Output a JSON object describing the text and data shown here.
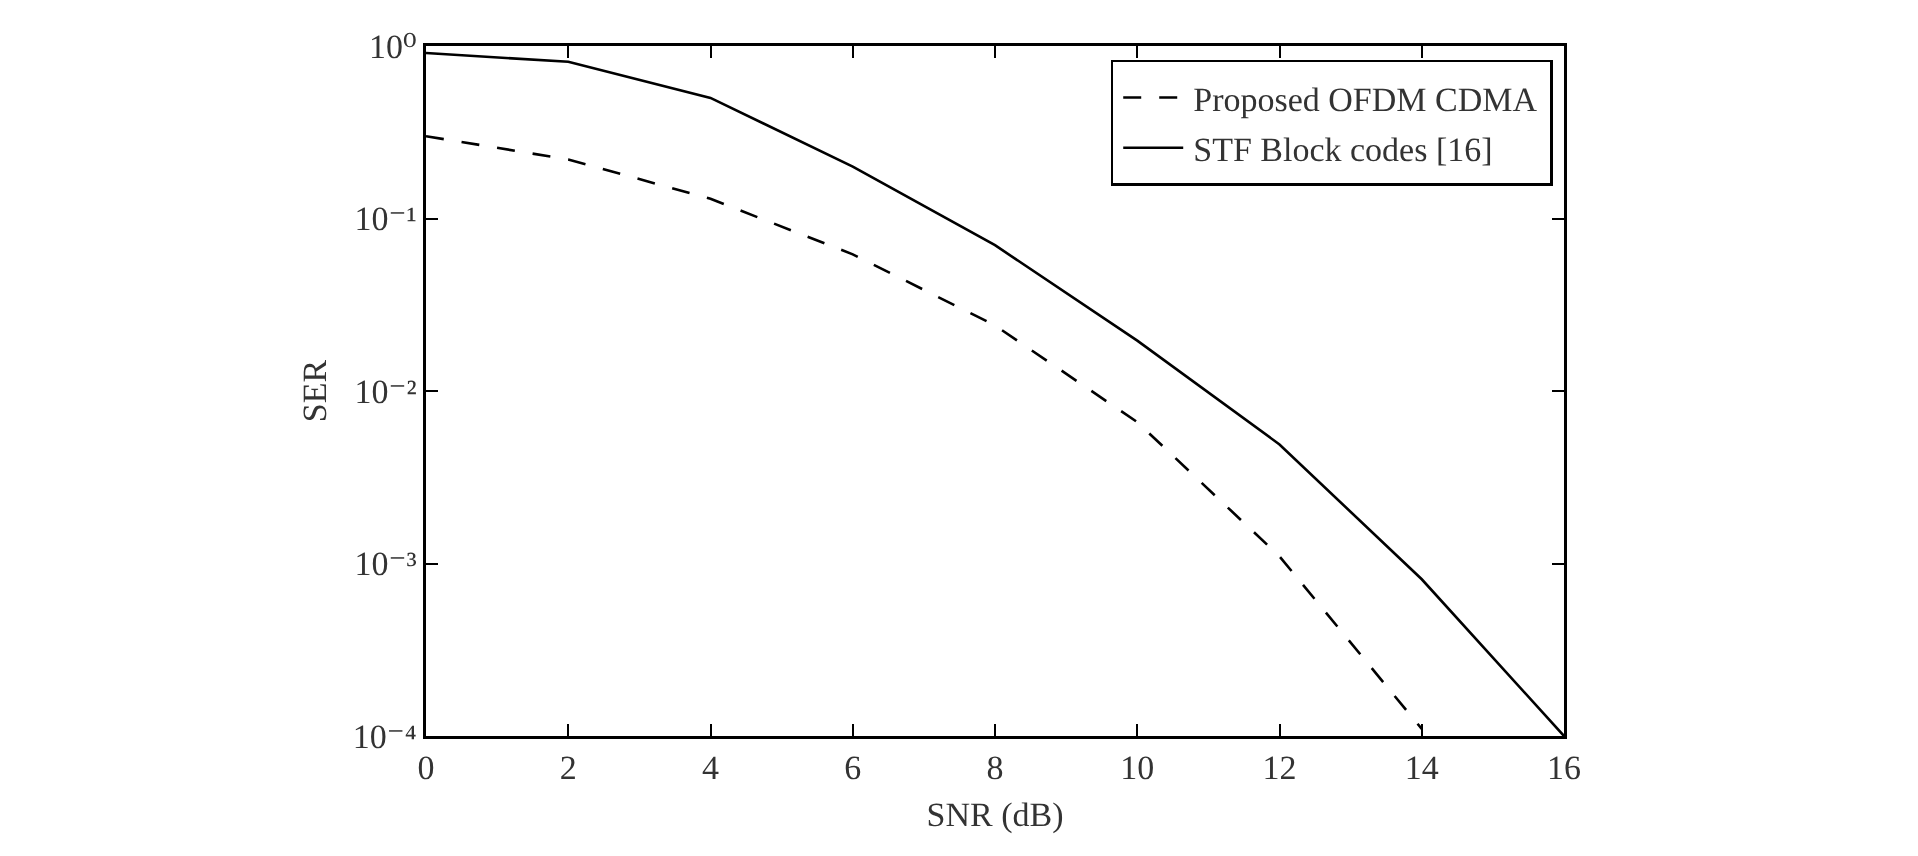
{
  "chart_data": {
    "type": "line",
    "xlabel": "SNR (dB)",
    "ylabel": "SER",
    "log": "y",
    "grid": false,
    "legend": "top right",
    "marker": "none",
    "x": [
      0,
      2,
      4,
      6,
      8,
      10,
      12,
      14,
      16
    ],
    "xlim": [
      0,
      16
    ],
    "xticks": [
      0,
      2,
      4,
      6,
      8,
      10,
      12,
      14,
      16
    ],
    "ylim": [
      0.0001,
      1
    ],
    "yticks": [
      {
        "value": 0.0001,
        "label": "10⁻⁴"
      },
      {
        "value": 0.001,
        "label": "10⁻³"
      },
      {
        "value": 0.01,
        "label": "10⁻²"
      },
      {
        "value": 0.1,
        "label": "10⁻¹"
      },
      {
        "value": 1,
        "label": "10⁰"
      }
    ],
    "series": [
      {
        "name": "Proposed OFDM CDMA",
        "color": "#000000",
        "line_style": "dashed",
        "values": [
          0.3,
          0.22,
          0.13,
          0.062,
          0.024,
          0.0066,
          0.0011,
          0.00011,
          null
        ]
      },
      {
        "name": "STF Block codes [16]",
        "color": "#000000",
        "line_style": "solid",
        "values": [
          0.91,
          0.81,
          0.5,
          0.2,
          0.07,
          0.0196,
          0.0049,
          0.00081,
          0.0001
        ]
      }
    ]
  }
}
